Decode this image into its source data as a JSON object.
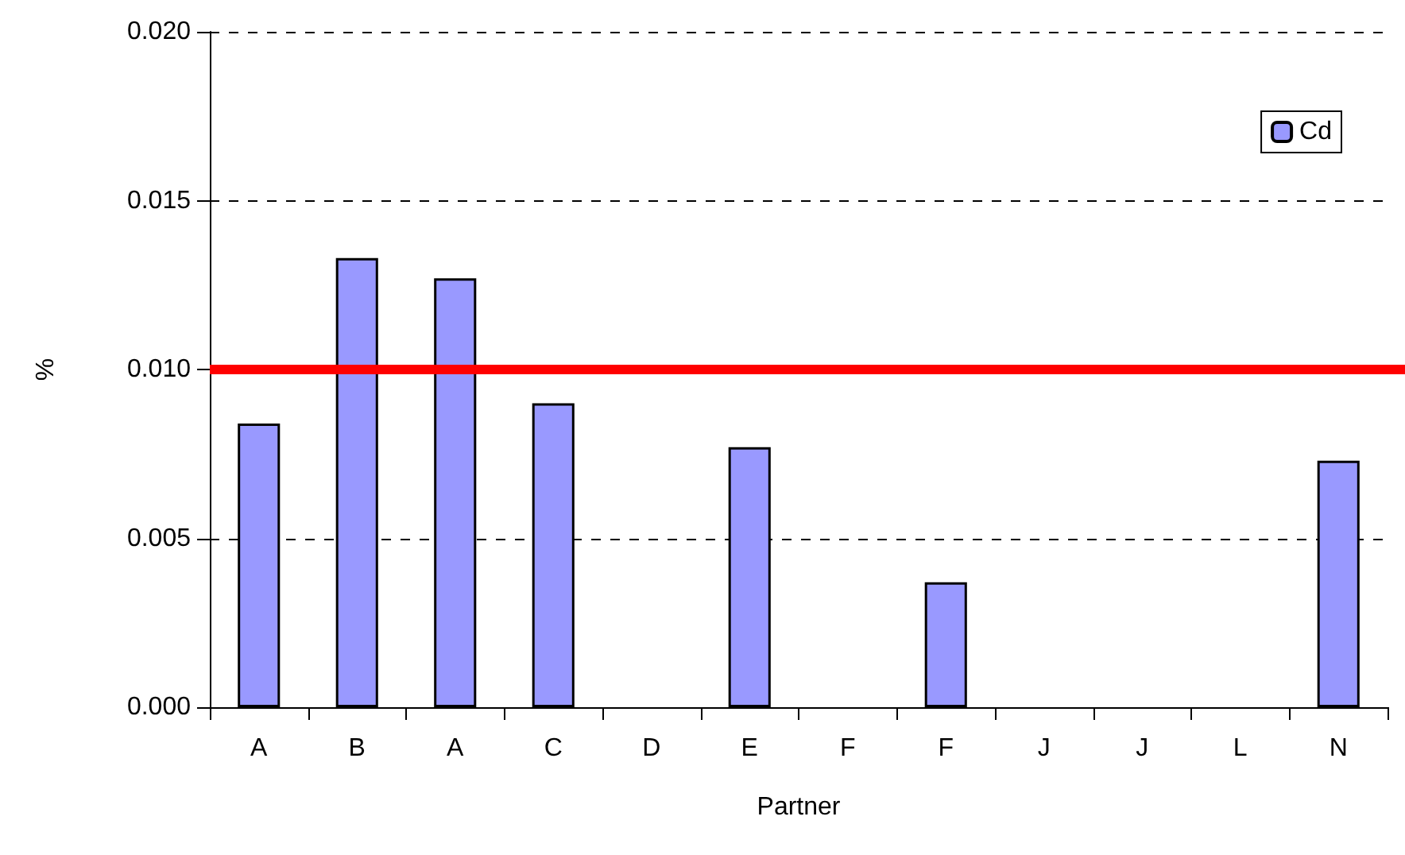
{
  "chart_data": {
    "type": "bar",
    "xlabel": "Partner",
    "ylabel": "%",
    "categories": [
      "A",
      "B",
      "A",
      "C",
      "D",
      "E",
      "F",
      "F",
      "J",
      "J",
      "L",
      "N"
    ],
    "series": [
      {
        "name": "Cd",
        "color": "#9999ff",
        "values": [
          0.0084,
          0.0133,
          0.0127,
          0.009,
          null,
          0.0077,
          null,
          0.0037,
          null,
          null,
          null,
          0.0073
        ]
      }
    ],
    "ylim": [
      0,
      0.02
    ],
    "yticks": [
      {
        "value": 0,
        "label": "0.000"
      },
      {
        "value": 0.005,
        "label": "0.005"
      },
      {
        "value": 0.01,
        "label": "0.010"
      },
      {
        "value": 0.015,
        "label": "0.015"
      },
      {
        "value": 0.02,
        "label": "0.020"
      }
    ],
    "ref_lines": [
      {
        "axis": "y",
        "value": 0.01,
        "color": "#ff0000"
      }
    ],
    "grid": "y",
    "legend": "top right"
  }
}
